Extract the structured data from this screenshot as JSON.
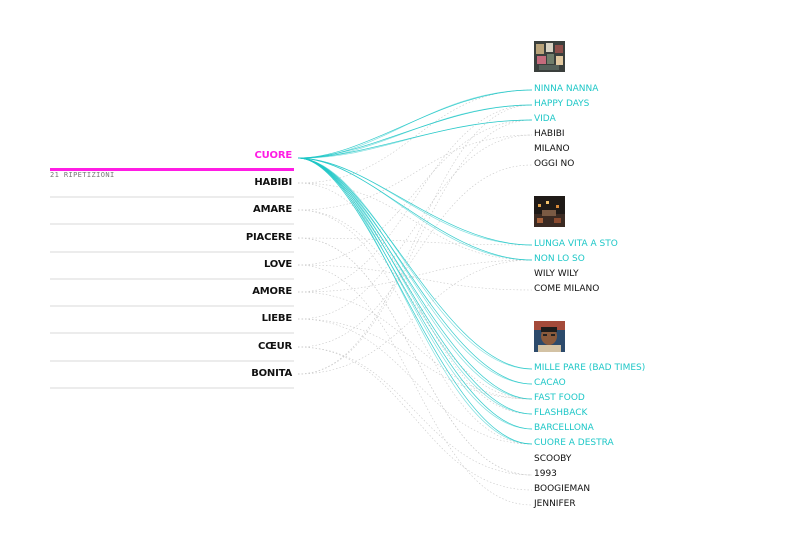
{
  "colors": {
    "accent": "#ff1ce4",
    "highlight": "#1ec7c7",
    "text": "#111111",
    "rule": "#ececec"
  },
  "selected_word": {
    "label": "CUORE",
    "repetitions": "21 RIPETIZIONI"
  },
  "other_words": [
    "HABIBI",
    "AMARE",
    "PIACERE",
    "LOVE",
    "AMORE",
    "LIEBE",
    "CŒUR",
    "BONITA"
  ],
  "albums": [
    {
      "cover_icon": "album-cover-collage",
      "songs": [
        {
          "title": "NINNA NANNA",
          "highlighted": true
        },
        {
          "title": "HAPPY DAYS",
          "highlighted": true
        },
        {
          "title": "VIDA",
          "highlighted": true
        },
        {
          "title": "HABIBI",
          "highlighted": false
        },
        {
          "title": "MILANO",
          "highlighted": false
        },
        {
          "title": "OGGI NO",
          "highlighted": false
        }
      ]
    },
    {
      "cover_icon": "album-cover-city-night",
      "songs": [
        {
          "title": "LUNGA VITA A STO",
          "highlighted": true
        },
        {
          "title": "NON LO SO",
          "highlighted": true
        },
        {
          "title": "WILY WILY",
          "highlighted": false
        },
        {
          "title": "COME MILANO",
          "highlighted": false
        }
      ]
    },
    {
      "cover_icon": "album-cover-portrait",
      "songs": [
        {
          "title": "MILLE PARE (BAD TIMES)",
          "highlighted": true
        },
        {
          "title": "CACAO",
          "highlighted": true
        },
        {
          "title": "FAST FOOD",
          "highlighted": true
        },
        {
          "title": "FLASHBACK",
          "highlighted": true
        },
        {
          "title": "BARCELLONA",
          "highlighted": true
        },
        {
          "title": "CUORE A DESTRA",
          "highlighted": true
        },
        {
          "title": "SCOOBY",
          "highlighted": false
        },
        {
          "title": "1993",
          "highlighted": false
        },
        {
          "title": "BOOGIEMAN",
          "highlighted": false
        },
        {
          "title": "JENNIFER",
          "highlighted": false
        }
      ]
    }
  ]
}
